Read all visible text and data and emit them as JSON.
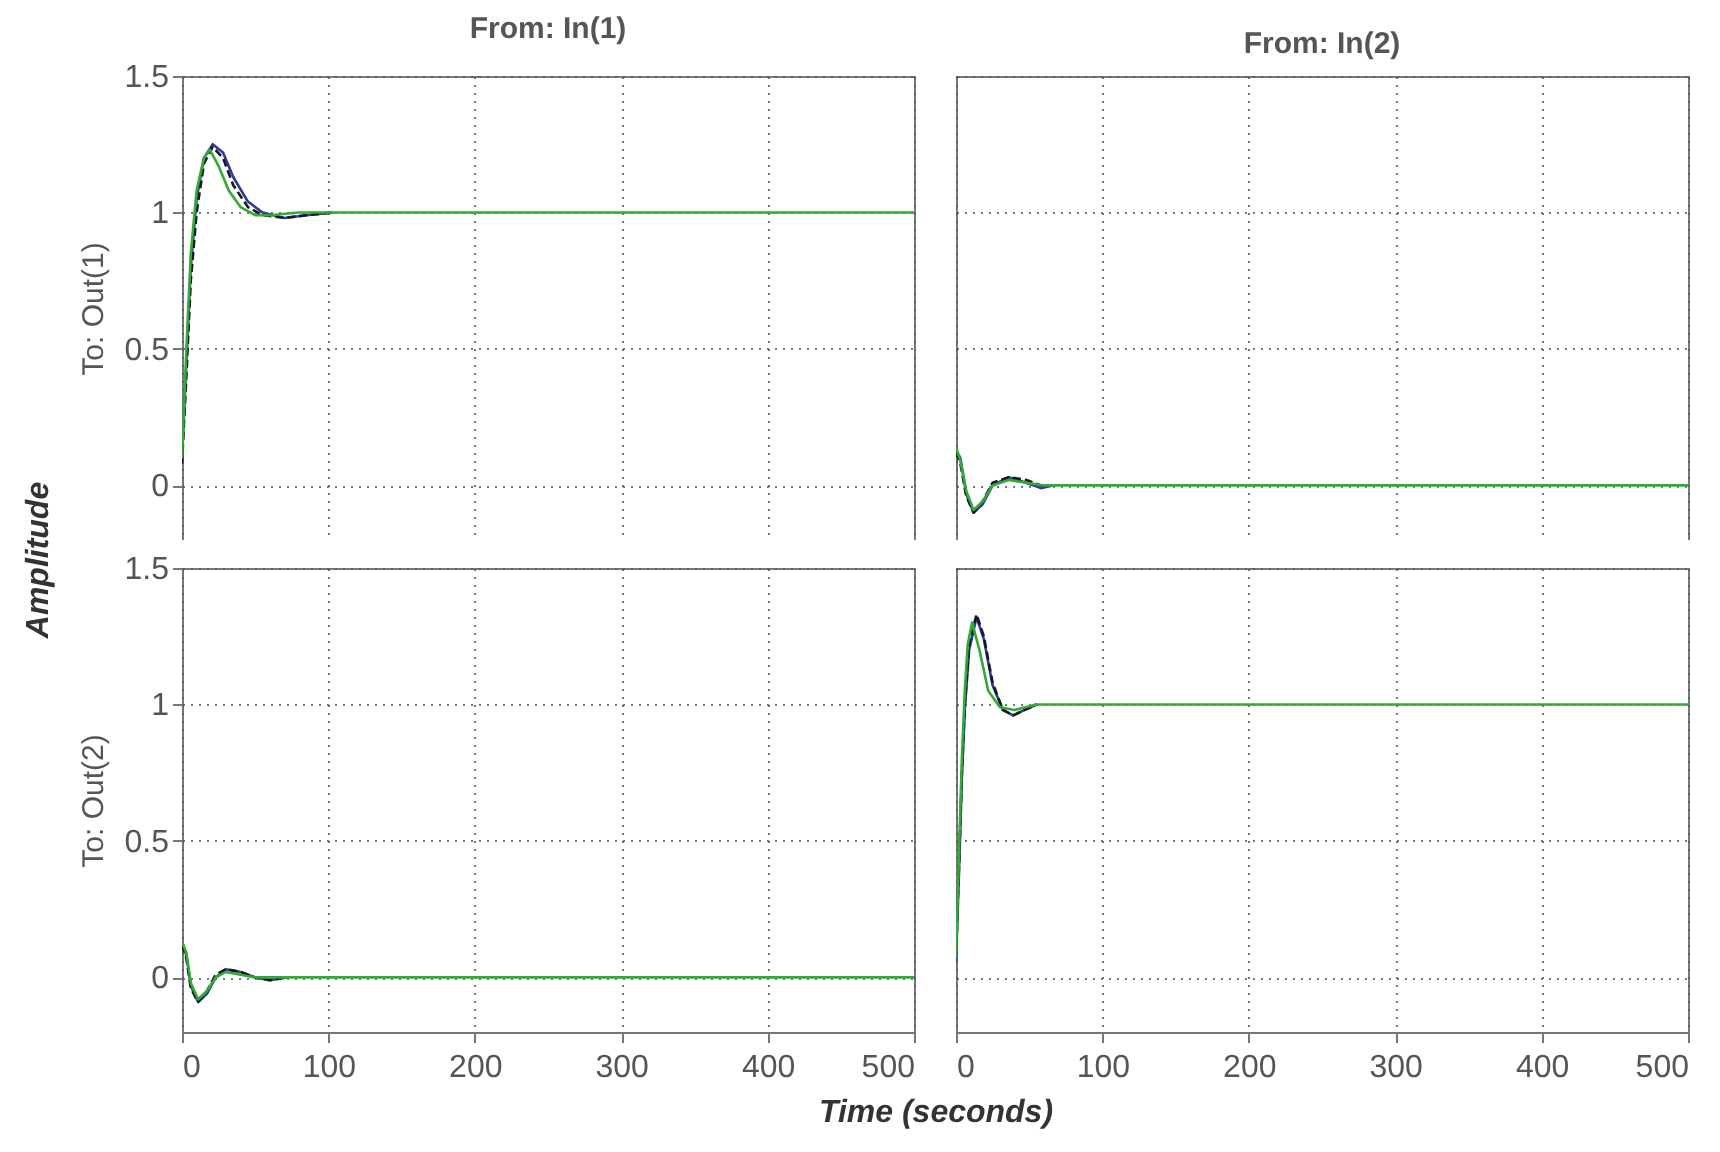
{
  "chart_data": [
    {
      "type": "line",
      "title": "From: In(1)",
      "ylabel": "To: Out(1)",
      "annotations": [
        "Amplitude"
      ],
      "xlim": [
        0,
        500
      ],
      "xticks": [
        0,
        100,
        200,
        300,
        400,
        500
      ],
      "ylim": [
        -0.2,
        1.5
      ],
      "yticks": [
        0,
        0.5,
        1,
        1.5
      ],
      "grid": true,
      "tick_labels": "y",
      "series": [
        {
          "color": "#2b3b9b",
          "x": [
            0,
            3,
            6,
            10,
            15,
            21,
            28,
            35,
            45,
            55,
            70,
            85,
            103
          ],
          "values": [
            0.1,
            0.45,
            0.8,
            1.05,
            1.2,
            1.25,
            1.22,
            1.13,
            1.04,
            1.0,
            0.98,
            0.99,
            1.0
          ]
        },
        {
          "color": "#1a1a1a",
          "line_style": "dashed",
          "x": [
            0,
            3,
            6,
            10,
            15,
            21,
            28,
            35,
            45,
            55,
            70,
            85,
            103
          ],
          "values": [
            0.08,
            0.4,
            0.75,
            1.0,
            1.18,
            1.24,
            1.2,
            1.1,
            1.02,
            0.99,
            0.98,
            0.99,
            1.0
          ]
        },
        {
          "color": "#33aa33",
          "x": [
            0,
            3,
            6,
            10,
            15,
            19,
            25,
            32,
            40,
            50,
            60,
            80,
            100,
            500
          ],
          "values": [
            0.1,
            0.5,
            0.85,
            1.08,
            1.2,
            1.23,
            1.17,
            1.08,
            1.02,
            0.99,
            0.99,
            1.0,
            1.0,
            1.0
          ]
        }
      ]
    },
    {
      "type": "line",
      "title": "From: In(2)",
      "xlim": [
        0,
        500
      ],
      "xticks": [
        0,
        100,
        200,
        300,
        400,
        500
      ],
      "ylim": [
        -0.2,
        1.5
      ],
      "yticks": [
        0,
        0.5,
        1,
        1.5
      ],
      "grid": true,
      "tick_labels": false,
      "series": [
        {
          "color": "#2b3b9b",
          "x": [
            0,
            3,
            7,
            12,
            18,
            25,
            36,
            48,
            58,
            66
          ],
          "values": [
            0.13,
            0.1,
            -0.03,
            -0.1,
            -0.07,
            0.0,
            0.03,
            0.01,
            -0.01,
            0
          ]
        },
        {
          "color": "#1a1a1a",
          "line_style": "dashed",
          "x": [
            0,
            3,
            7,
            12,
            18,
            25,
            36,
            48,
            58,
            66
          ],
          "values": [
            0.12,
            0.08,
            -0.04,
            -0.1,
            -0.06,
            0.01,
            0.03,
            0.02,
            0,
            0
          ]
        },
        {
          "color": "#33aa33",
          "x": [
            0,
            3,
            7,
            12,
            18,
            25,
            36,
            48,
            60,
            500
          ],
          "values": [
            0.14,
            0.09,
            -0.02,
            -0.09,
            -0.06,
            0.0,
            0.02,
            0.01,
            0,
            0
          ]
        }
      ]
    },
    {
      "type": "line",
      "xlabel": "Time (seconds)",
      "ylabel": "To: Out(2)",
      "xlim": [
        0,
        500
      ],
      "xticks": [
        0,
        100,
        200,
        300,
        400,
        500
      ],
      "ylim": [
        -0.2,
        1.5
      ],
      "yticks": [
        0,
        0.5,
        1,
        1.5
      ],
      "grid": true,
      "series": [
        {
          "color": "#2b3b9b",
          "x": [
            0,
            3,
            6,
            11,
            17,
            23,
            30,
            40,
            50,
            60,
            71
          ],
          "values": [
            0.13,
            0.08,
            -0.03,
            -0.09,
            -0.06,
            0.0,
            0.03,
            0.02,
            0.0,
            -0.01,
            0
          ]
        },
        {
          "color": "#1a1a1a",
          "line_style": "dashed",
          "x": [
            0,
            3,
            6,
            11,
            17,
            23,
            30,
            40,
            50,
            60,
            71
          ],
          "values": [
            0.12,
            0.07,
            -0.04,
            -0.09,
            -0.05,
            0.01,
            0.03,
            0.02,
            0.0,
            -0.01,
            0
          ]
        },
        {
          "color": "#33aa33",
          "x": [
            0,
            3,
            6,
            11,
            17,
            23,
            30,
            40,
            50,
            60,
            75,
            500
          ],
          "values": [
            0.13,
            0.09,
            -0.02,
            -0.08,
            -0.05,
            0.0,
            0.02,
            0.01,
            0.0,
            0,
            0,
            0
          ]
        }
      ]
    },
    {
      "type": "line",
      "xlim": [
        0,
        500
      ],
      "xticks": [
        0,
        100,
        200,
        300,
        400,
        500
      ],
      "ylim": [
        -0.2,
        1.5
      ],
      "yticks": [
        0,
        0.5,
        1,
        1.5
      ],
      "grid": true,
      "tick_labels": "x",
      "series": [
        {
          "color": "#2b3b9b",
          "x": [
            0,
            2,
            4,
            6,
            9,
            14,
            19,
            25,
            32,
            39,
            47,
            55
          ],
          "values": [
            0.06,
            0.38,
            0.73,
            0.98,
            1.2,
            1.32,
            1.24,
            1.07,
            0.98,
            0.96,
            0.98,
            1.0
          ]
        },
        {
          "color": "#1a1a1a",
          "line_style": "dashed",
          "x": [
            0,
            2,
            4,
            6,
            9,
            14,
            19,
            25,
            32,
            39,
            47,
            55
          ],
          "values": [
            0.07,
            0.4,
            0.75,
            1.0,
            1.22,
            1.33,
            1.25,
            1.08,
            0.98,
            0.96,
            0.98,
            1.0
          ]
        },
        {
          "color": "#33aa33",
          "x": [
            0,
            2,
            4,
            6,
            8,
            11,
            16,
            22,
            30,
            40,
            55,
            500
          ],
          "values": [
            0.07,
            0.45,
            0.8,
            1.05,
            1.22,
            1.3,
            1.2,
            1.05,
            0.99,
            0.98,
            1.0,
            1.0
          ]
        }
      ]
    }
  ]
}
